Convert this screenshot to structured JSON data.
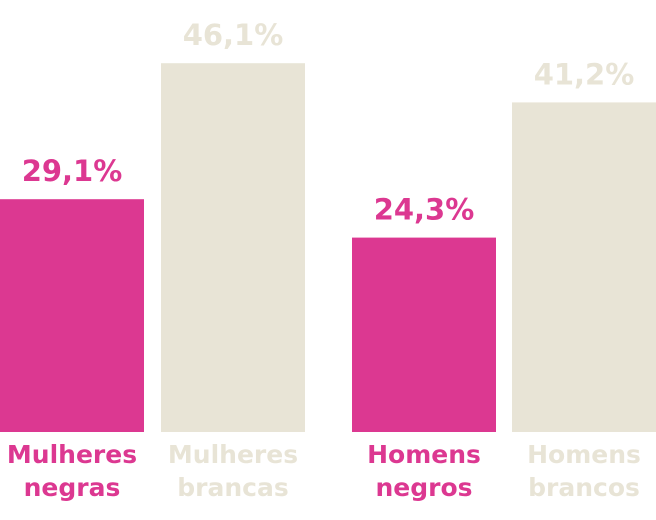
{
  "chart_data": {
    "type": "bar",
    "categories": [
      "Mulheres negras",
      "Mulheres brancas",
      "Homens negros",
      "Homens brancos"
    ],
    "values": [
      29.1,
      46.1,
      24.3,
      41.2
    ],
    "value_labels": [
      "29,1%",
      "46,1%",
      "24,3%",
      "41,2%"
    ],
    "colors": [
      "#dc3891",
      "#e8e4d6",
      "#dc3891",
      "#e8e4d6"
    ],
    "ylim": [
      0,
      54
    ]
  }
}
